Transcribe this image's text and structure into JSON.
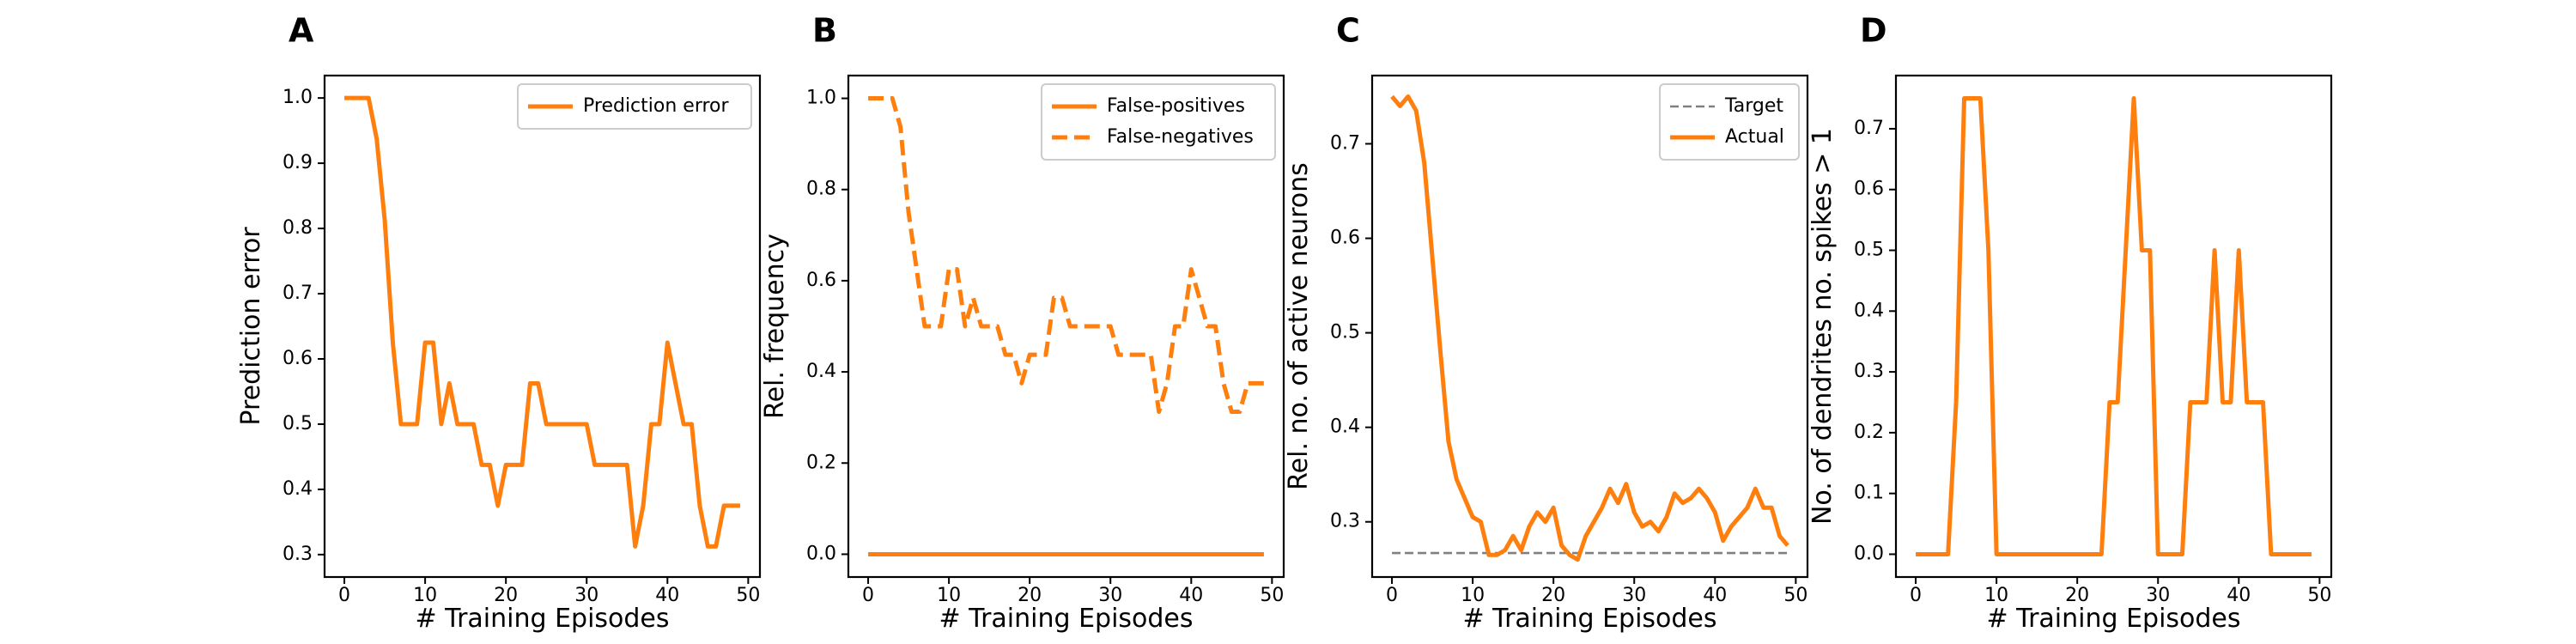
{
  "colors": {
    "orange": "#ff7f0e",
    "gray": "#808080"
  },
  "chart_data": [
    {
      "type": "line",
      "panel_letter": "A",
      "xlabel": "# Training Episodes",
      "ylabel": "Prediction error",
      "xlim": [
        -2.45,
        51.45
      ],
      "ylim": [
        0.2656,
        1.0344
      ],
      "xticks": [
        0,
        10,
        20,
        30,
        40,
        50
      ],
      "yticks": [
        0.3,
        0.4,
        0.5,
        0.6,
        0.7,
        0.8,
        0.9,
        1.0
      ],
      "ytick_labels": [
        "0.3",
        "0.4",
        "0.5",
        "0.6",
        "0.7",
        "0.8",
        "0.9",
        "1.0"
      ],
      "legend_position": "top-right",
      "series": [
        {
          "name": "Prediction error",
          "style": "solid",
          "color": "#ff7f0e",
          "x": [
            0,
            1,
            2,
            3,
            4,
            5,
            6,
            7,
            8,
            9,
            10,
            11,
            12,
            13,
            14,
            15,
            16,
            17,
            18,
            19,
            20,
            21,
            22,
            23,
            24,
            25,
            26,
            27,
            28,
            29,
            30,
            31,
            32,
            33,
            34,
            35,
            36,
            37,
            38,
            39,
            40,
            41,
            42,
            43,
            44,
            45,
            46,
            47,
            48,
            49
          ],
          "y": [
            1.0,
            1.0,
            1.0,
            1.0,
            0.9375,
            0.8125,
            0.625,
            0.5,
            0.5,
            0.5,
            0.625,
            0.625,
            0.5,
            0.5625,
            0.5,
            0.5,
            0.5,
            0.4375,
            0.4375,
            0.375,
            0.4375,
            0.4375,
            0.4375,
            0.5625,
            0.5625,
            0.5,
            0.5,
            0.5,
            0.5,
            0.5,
            0.5,
            0.4375,
            0.4375,
            0.4375,
            0.4375,
            0.4375,
            0.3125,
            0.375,
            0.5,
            0.5,
            0.625,
            0.5625,
            0.5,
            0.5,
            0.375,
            0.3125,
            0.3125,
            0.375,
            0.375,
            0.375
          ]
        }
      ]
    },
    {
      "type": "line",
      "panel_letter": "B",
      "xlabel": "# Training Episodes",
      "ylabel": "Rel. frequency",
      "xlim": [
        -2.45,
        51.45
      ],
      "ylim": [
        -0.05,
        1.05
      ],
      "xticks": [
        0,
        10,
        20,
        30,
        40,
        50
      ],
      "yticks": [
        0.0,
        0.2,
        0.4,
        0.6,
        0.8,
        1.0
      ],
      "ytick_labels": [
        "0.0",
        "0.2",
        "0.4",
        "0.6",
        "0.8",
        "1.0"
      ],
      "legend_position": "top-right",
      "series": [
        {
          "name": "False-positives",
          "style": "solid",
          "color": "#ff7f0e",
          "x": [
            0,
            49
          ],
          "y": [
            0.0,
            0.0
          ]
        },
        {
          "name": "False-negatives",
          "style": "dashed",
          "color": "#ff7f0e",
          "x": [
            0,
            1,
            2,
            3,
            4,
            5,
            6,
            7,
            8,
            9,
            10,
            11,
            12,
            13,
            14,
            15,
            16,
            17,
            18,
            19,
            20,
            21,
            22,
            23,
            24,
            25,
            26,
            27,
            28,
            29,
            30,
            31,
            32,
            33,
            34,
            35,
            36,
            37,
            38,
            39,
            40,
            41,
            42,
            43,
            44,
            45,
            46,
            47,
            48,
            49
          ],
          "y": [
            1.0,
            1.0,
            1.0,
            1.0,
            0.9375,
            0.75,
            0.625,
            0.5,
            0.5,
            0.5,
            0.625,
            0.625,
            0.5,
            0.5625,
            0.5,
            0.5,
            0.5,
            0.4375,
            0.4375,
            0.375,
            0.4375,
            0.4375,
            0.4375,
            0.5625,
            0.5625,
            0.5,
            0.5,
            0.5,
            0.5,
            0.5,
            0.5,
            0.4375,
            0.4375,
            0.4375,
            0.4375,
            0.4375,
            0.3125,
            0.375,
            0.5,
            0.5,
            0.625,
            0.5625,
            0.5,
            0.5,
            0.375,
            0.3125,
            0.3125,
            0.375,
            0.375,
            0.375
          ]
        }
      ]
    },
    {
      "type": "line",
      "panel_letter": "C",
      "xlabel": "# Training Episodes",
      "ylabel": "Rel. no. of active neurons",
      "xlim": [
        -2.45,
        51.45
      ],
      "ylim": [
        0.2416,
        0.7722
      ],
      "xticks": [
        0,
        10,
        20,
        30,
        40,
        50
      ],
      "yticks": [
        0.3,
        0.4,
        0.5,
        0.6,
        0.7
      ],
      "ytick_labels": [
        "0.3",
        "0.4",
        "0.5",
        "0.6",
        "0.7"
      ],
      "legend_position": "top-right",
      "series": [
        {
          "name": "Target",
          "style": "dashed-thin",
          "color": "#808080",
          "x": [
            0,
            49
          ],
          "y": [
            0.267,
            0.267
          ]
        },
        {
          "name": "Actual",
          "style": "solid",
          "color": "#ff7f0e",
          "x": [
            0,
            1,
            2,
            3,
            4,
            5,
            6,
            7,
            8,
            9,
            10,
            11,
            12,
            13,
            14,
            15,
            16,
            17,
            18,
            19,
            20,
            21,
            22,
            23,
            24,
            25,
            26,
            27,
            28,
            29,
            30,
            31,
            32,
            33,
            34,
            35,
            36,
            37,
            38,
            39,
            40,
            41,
            42,
            43,
            44,
            45,
            46,
            47,
            48,
            49
          ],
          "y": [
            0.75,
            0.74,
            0.75,
            0.735,
            0.68,
            0.58,
            0.48,
            0.385,
            0.345,
            0.325,
            0.305,
            0.3,
            0.265,
            0.265,
            0.27,
            0.285,
            0.27,
            0.295,
            0.31,
            0.3,
            0.315,
            0.275,
            0.265,
            0.26,
            0.285,
            0.3,
            0.315,
            0.335,
            0.32,
            0.34,
            0.31,
            0.295,
            0.3,
            0.29,
            0.305,
            0.33,
            0.32,
            0.325,
            0.335,
            0.325,
            0.31,
            0.28,
            0.295,
            0.305,
            0.315,
            0.335,
            0.315,
            0.315,
            0.285,
            0.275
          ]
        }
      ]
    },
    {
      "type": "line",
      "panel_letter": "D",
      "xlabel": "# Training Episodes",
      "ylabel": "No. of dendrites no. spikes > 1",
      "xlim": [
        -2.45,
        51.45
      ],
      "ylim": [
        -0.0375,
        0.7875
      ],
      "xticks": [
        0,
        10,
        20,
        30,
        40,
        50
      ],
      "yticks": [
        0.0,
        0.1,
        0.2,
        0.3,
        0.4,
        0.5,
        0.6,
        0.7
      ],
      "ytick_labels": [
        "0.0",
        "0.1",
        "0.2",
        "0.3",
        "0.4",
        "0.5",
        "0.6",
        "0.7"
      ],
      "legend_position": "",
      "series": [
        {
          "name": "",
          "style": "solid",
          "color": "#ff7f0e",
          "x": [
            0,
            1,
            2,
            3,
            4,
            5,
            6,
            7,
            8,
            9,
            10,
            11,
            12,
            13,
            14,
            15,
            16,
            17,
            18,
            19,
            20,
            21,
            22,
            23,
            24,
            25,
            26,
            27,
            28,
            29,
            30,
            31,
            32,
            33,
            34,
            35,
            36,
            37,
            38,
            39,
            40,
            41,
            42,
            43,
            44,
            45,
            46,
            47,
            48,
            49
          ],
          "y": [
            0,
            0,
            0,
            0,
            0,
            0.25,
            0.75,
            0.75,
            0.75,
            0.5,
            0,
            0,
            0,
            0,
            0,
            0,
            0,
            0,
            0,
            0,
            0,
            0,
            0,
            0,
            0.25,
            0.25,
            0.5,
            0.75,
            0.5,
            0.5,
            0,
            0,
            0,
            0,
            0.25,
            0.25,
            0.25,
            0.5,
            0.25,
            0.25,
            0.5,
            0.25,
            0.25,
            0.25,
            0,
            0,
            0,
            0,
            0,
            0
          ]
        }
      ]
    }
  ]
}
